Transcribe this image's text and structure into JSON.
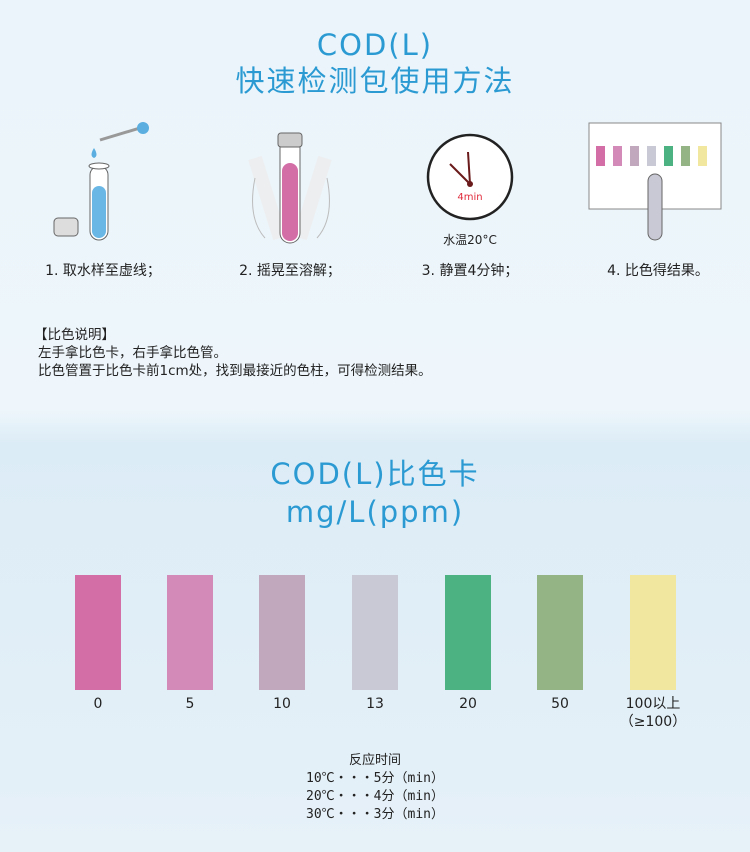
{
  "header": {
    "title_line1": "COD(L)",
    "title_line2": "快速检测包使用方法"
  },
  "steps": [
    {
      "label": "1. 取水样至虚线；",
      "icon": "test-tube-dropper-icon"
    },
    {
      "label": "2. 摇晃至溶解；",
      "icon": "shake-tube-icon"
    },
    {
      "label": "3. 静置4分钟；",
      "icon": "clock-icon",
      "clock_text": "4min",
      "caption": "水温20°C"
    },
    {
      "label": "4. 比色得结果。",
      "icon": "color-card-compare-icon"
    }
  ],
  "note": {
    "heading": "【比色说明】",
    "line1": "左手拿比色卡，右手拿比色管。",
    "line2": "比色管置于比色卡前1cm处，找到最接近的色柱，可得检测结果。"
  },
  "card": {
    "title_line1": "COD(L)比色卡",
    "title_line2": "mg/L(ppm)",
    "swatches": [
      {
        "label": "0",
        "color": "#d36ea7"
      },
      {
        "label": "5",
        "color": "#d38ab9"
      },
      {
        "label": "10",
        "color": "#c2a8bc"
      },
      {
        "label": "13",
        "color": "#c9c9d5"
      },
      {
        "label": "20",
        "color": "#4db282"
      },
      {
        "label": "50",
        "color": "#95b486"
      },
      {
        "label": "100以上",
        "sub": "（≥100）",
        "color": "#f1e79f"
      }
    ]
  },
  "reaction": {
    "heading": "反应时间",
    "rows": [
      "10℃・・・5分（min）",
      "20℃・・・4分（min）",
      "30℃・・・3分（min）"
    ]
  }
}
